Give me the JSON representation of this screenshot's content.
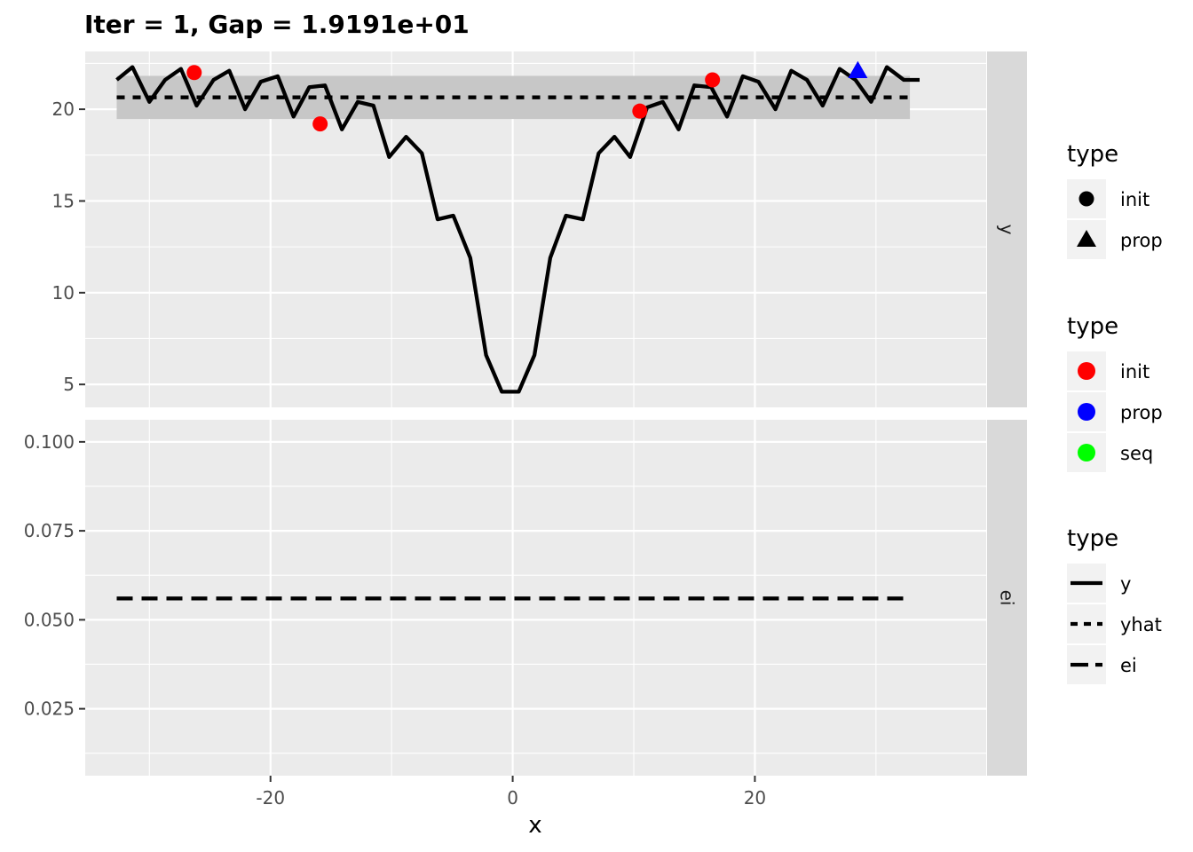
{
  "title": "Iter = 1, Gap = 1.9191e+01",
  "xlabel": "x",
  "colors": {
    "panel_bg": "#ebebeb",
    "strip_bg": "#d9d9d9",
    "grid": "#ffffff",
    "band": "#c7c7c7",
    "init": "#ff0000",
    "prop": "#0000ff",
    "seq": "#00ff00"
  },
  "chart_data": {
    "type": "line",
    "x_ticks": [
      -20,
      0,
      20
    ],
    "x_range": [
      -35.3,
      39.1
    ],
    "panels": [
      {
        "strip": "y",
        "y_range": [
          3.75,
          23.15
        ],
        "y_ticks": [
          5,
          10,
          15,
          20
        ],
        "band": {
          "x0": -32.7,
          "x1": 32.8,
          "lower": 19.47,
          "upper": 21.82
        },
        "series": [
          {
            "type": "y",
            "linestyle": "solid",
            "x": [
              -32.7,
              -31.4,
              -30.0,
              -28.7,
              -27.4,
              -26.1,
              -24.7,
              -23.4,
              -22.1,
              -20.8,
              -19.4,
              -18.1,
              -16.8,
              -15.5,
              -14.1,
              -12.8,
              -11.5,
              -10.2,
              -8.8,
              -7.5,
              -6.2,
              -4.9,
              -3.5,
              -2.2,
              -0.9,
              0.5,
              1.8,
              3.1,
              4.4,
              5.8,
              7.1,
              8.4,
              9.7,
              11.1,
              12.4,
              13.7,
              15.0,
              16.4,
              17.7,
              19.0,
              20.3,
              21.7,
              23.0,
              24.3,
              25.6,
              27.0,
              28.3,
              29.6,
              30.9,
              32.3,
              33.6
            ],
            "y": [
              21.6,
              22.3,
              20.4,
              21.6,
              22.2,
              20.2,
              21.6,
              22.1,
              20.0,
              21.5,
              21.8,
              19.6,
              21.2,
              21.3,
              18.9,
              20.4,
              20.2,
              17.4,
              18.5,
              17.6,
              14.0,
              14.2,
              11.9,
              6.6,
              4.6,
              4.6,
              6.6,
              11.9,
              14.2,
              14.0,
              17.6,
              18.5,
              17.4,
              20.1,
              20.4,
              18.9,
              21.3,
              21.2,
              19.6,
              21.8,
              21.5,
              20.0,
              22.1,
              21.6,
              20.2,
              22.2,
              21.6,
              20.4,
              22.3,
              21.6,
              21.6
            ]
          },
          {
            "type": "yhat",
            "linestyle": "dotted",
            "x": [
              -32.7,
              32.8
            ],
            "y": [
              20.65,
              20.65
            ]
          }
        ],
        "points": [
          {
            "x": -26.3,
            "y": 22.0,
            "color_type": "init",
            "shape_type": "init"
          },
          {
            "x": -15.9,
            "y": 19.2,
            "color_type": "init",
            "shape_type": "init"
          },
          {
            "x": 10.5,
            "y": 19.9,
            "color_type": "init",
            "shape_type": "init"
          },
          {
            "x": 16.5,
            "y": 21.6,
            "color_type": "init",
            "shape_type": "init"
          },
          {
            "x": 28.5,
            "y": 22.1,
            "color_type": "prop",
            "shape_type": "prop"
          }
        ]
      },
      {
        "strip": "ei",
        "y_range": [
          0.0062,
          0.1062
        ],
        "y_ticks": [
          0.025,
          0.05,
          0.075,
          0.1
        ],
        "y_tick_labels": [
          "0.025",
          "0.050",
          "0.075",
          "0.100"
        ],
        "series": [
          {
            "type": "ei",
            "linestyle": "dashed",
            "x": [
              -32.7,
              32.8
            ],
            "y": [
              0.056,
              0.056
            ]
          }
        ]
      }
    ],
    "legends": [
      {
        "title": "type",
        "kind": "shape",
        "items": [
          {
            "label": "init",
            "shape": "circle"
          },
          {
            "label": "prop",
            "shape": "triangle"
          }
        ]
      },
      {
        "title": "type",
        "kind": "color",
        "items": [
          {
            "label": "init",
            "color": "#ff0000"
          },
          {
            "label": "prop",
            "color": "#0000ff"
          },
          {
            "label": "seq",
            "color": "#00ff00"
          }
        ]
      },
      {
        "title": "type",
        "kind": "linetype",
        "items": [
          {
            "label": "y",
            "linestyle": "solid"
          },
          {
            "label": "yhat",
            "linestyle": "dotted"
          },
          {
            "label": "ei",
            "linestyle": "dashed"
          }
        ]
      }
    ]
  }
}
